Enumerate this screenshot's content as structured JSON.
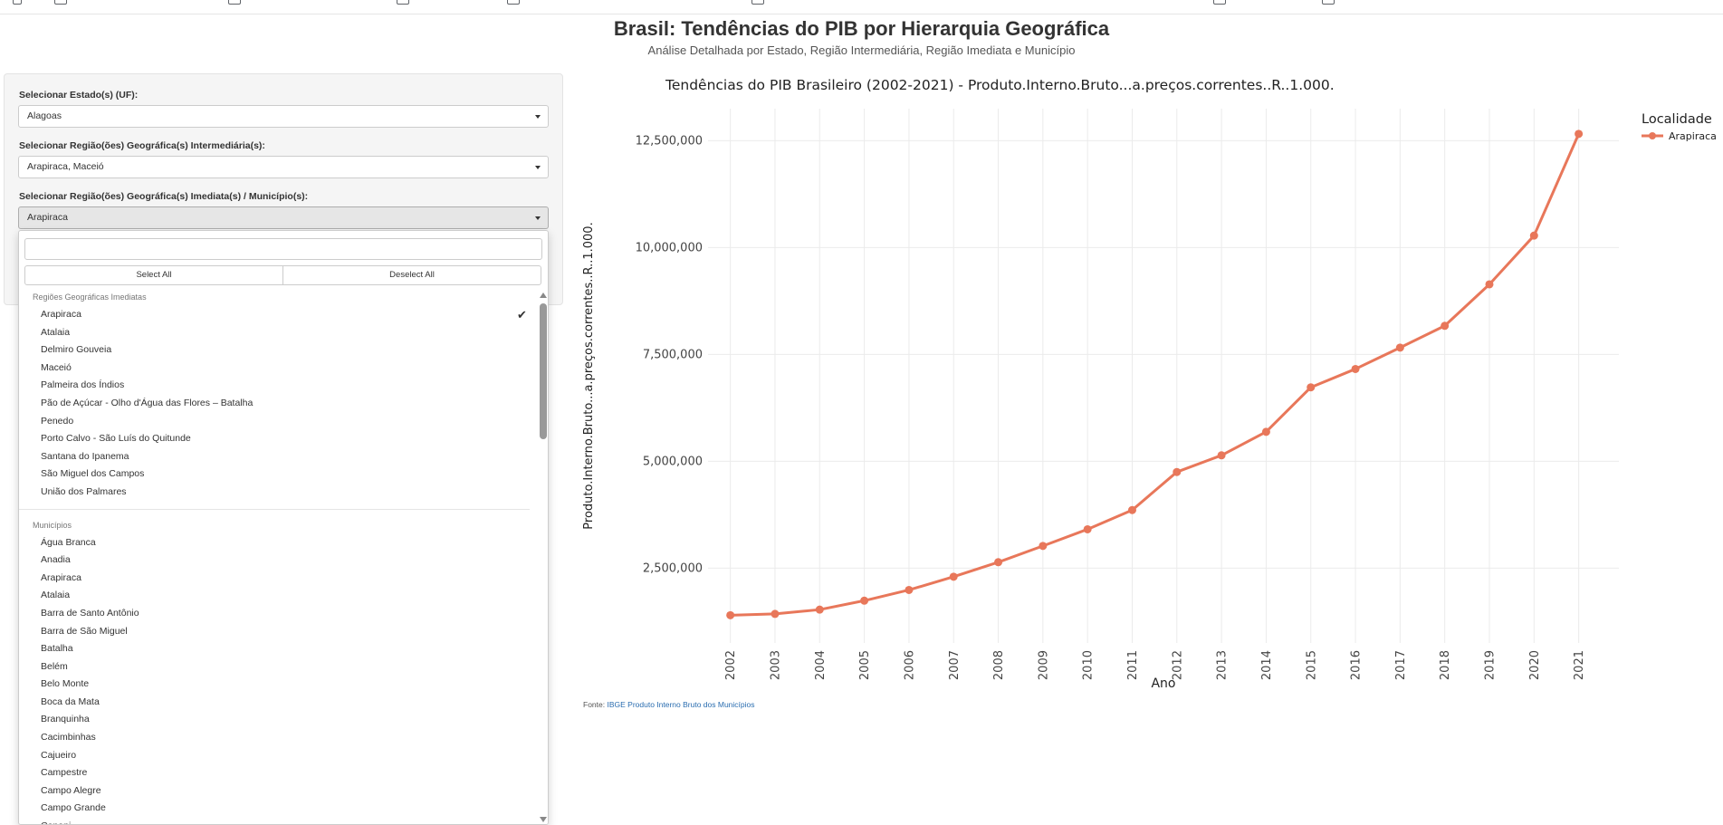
{
  "title": "Brasil: Tendências do PIB por Hierarquia Geográfica",
  "subtitle": "Análise Detalhada por Estado, Região Intermediária, Região Imediata e Município",
  "controls": {
    "uf_label": "Selecionar Estado(s) (UF):",
    "uf_value": "Alagoas",
    "intermediaria_label": "Selecionar Região(ões) Geográfica(s) Intermediária(s):",
    "intermediaria_value": "Arapiraca, Maceió",
    "imediata_label": "Selecionar Região(ões) Geográfica(s) Imediata(s) / Município(s):",
    "imediata_value": "Arapiraca"
  },
  "dropdown": {
    "search_value": "",
    "select_all": "Select All",
    "deselect_all": "Deselect All",
    "groups": [
      {
        "header": "Regiões Geográficas Imediatas",
        "items": [
          "Arapiraca",
          "Atalaia",
          "Delmiro Gouveia",
          "Maceió",
          "Palmeira dos Índios",
          "Pão de Açúcar - Olho d'Água das Flores – Batalha",
          "Penedo",
          "Porto Calvo - São Luís do Quitunde",
          "Santana do Ipanema",
          "São Miguel dos Campos",
          "União dos Palmares"
        ],
        "selected": [
          "Arapiraca"
        ]
      },
      {
        "header": "Municípios",
        "items": [
          "Água Branca",
          "Anadia",
          "Arapiraca",
          "Atalaia",
          "Barra de Santo Antônio",
          "Barra de São Miguel",
          "Batalha",
          "Belém",
          "Belo Monte",
          "Boca da Mata",
          "Branquinha",
          "Cacimbinhas",
          "Cajueiro",
          "Campestre",
          "Campo Alegre",
          "Campo Grande",
          "Canapi"
        ],
        "selected": []
      }
    ]
  },
  "chart_data": {
    "type": "line",
    "title": "Tendências do PIB Brasileiro (2002-2021) - Produto.Interno.Bruto...a.preços.correntes..R..1.000.",
    "xlabel": "Ano",
    "ylabel": "Produto.Interno.Bruto...a.preços.correntes..R..1.000.",
    "x": [
      2002,
      2003,
      2004,
      2005,
      2006,
      2007,
      2008,
      2009,
      2010,
      2011,
      2012,
      2013,
      2014,
      2015,
      2016,
      2017,
      2018,
      2019,
      2020,
      2021
    ],
    "x_tick_labels": [
      "2002",
      "2003",
      "2004",
      "2005",
      "2006",
      "2007",
      "2008",
      "2009",
      "2010",
      "2011",
      "2012",
      "2013",
      "2014",
      "2015",
      "2016",
      "2017",
      "2018",
      "2019",
      "2020",
      "2021"
    ],
    "series": [
      {
        "name": "Arapiraca",
        "color": "#e8775a",
        "values": [
          1400000,
          1430000,
          1530000,
          1740000,
          1990000,
          2300000,
          2640000,
          3020000,
          3410000,
          3860000,
          4750000,
          5140000,
          5690000,
          6730000,
          7160000,
          7660000,
          8170000,
          9140000,
          10280000,
          12660000
        ]
      }
    ],
    "y_ticks": [
      2500000,
      5000000,
      7500000,
      10000000,
      12500000
    ],
    "y_tick_labels": [
      "2,500,000",
      "5,000,000",
      "7,500,000",
      "10,000,000",
      "12,500,000"
    ],
    "ylim": [
      750000,
      13250000
    ],
    "grid": true,
    "legend_title": "Localidade",
    "legend_position": "top-right"
  },
  "source": {
    "prefix": "Fonte:",
    "link_text": "IBGE Produto Interno Bruto dos Municípios"
  }
}
